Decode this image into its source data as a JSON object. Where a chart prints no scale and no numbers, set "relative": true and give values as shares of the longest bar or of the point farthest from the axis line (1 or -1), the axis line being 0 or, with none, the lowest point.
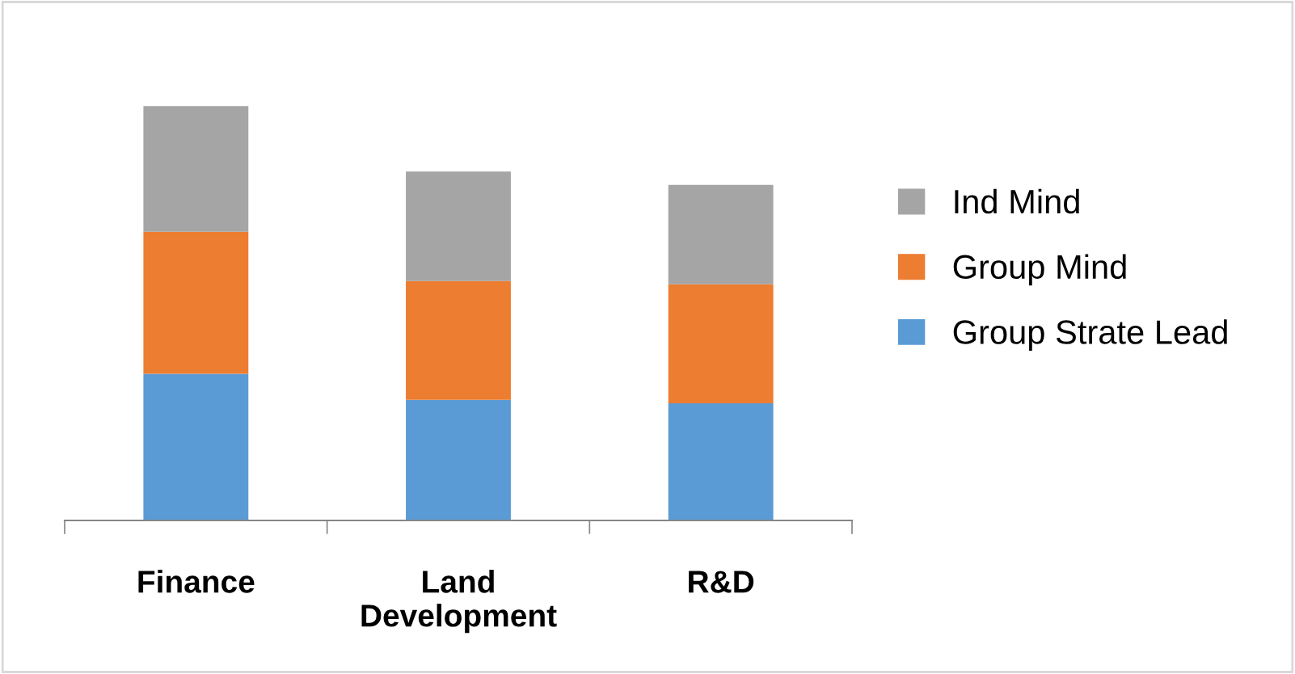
{
  "chart_data": {
    "type": "bar",
    "stacked": true,
    "relative": true,
    "categories": [
      "Finance",
      "Land Development",
      "R&D"
    ],
    "series": [
      {
        "name": "Group Strate Lead",
        "color": "#5b9bd5",
        "values": [
          0.354,
          0.291,
          0.283
        ]
      },
      {
        "name": "Group Mind",
        "color": "#ed7d31",
        "values": [
          0.343,
          0.287,
          0.287
        ]
      },
      {
        "name": "Ind Mind",
        "color": "#a5a5a5",
        "values": [
          0.303,
          0.264,
          0.24
        ]
      }
    ],
    "legend": "right",
    "grid": false
  }
}
